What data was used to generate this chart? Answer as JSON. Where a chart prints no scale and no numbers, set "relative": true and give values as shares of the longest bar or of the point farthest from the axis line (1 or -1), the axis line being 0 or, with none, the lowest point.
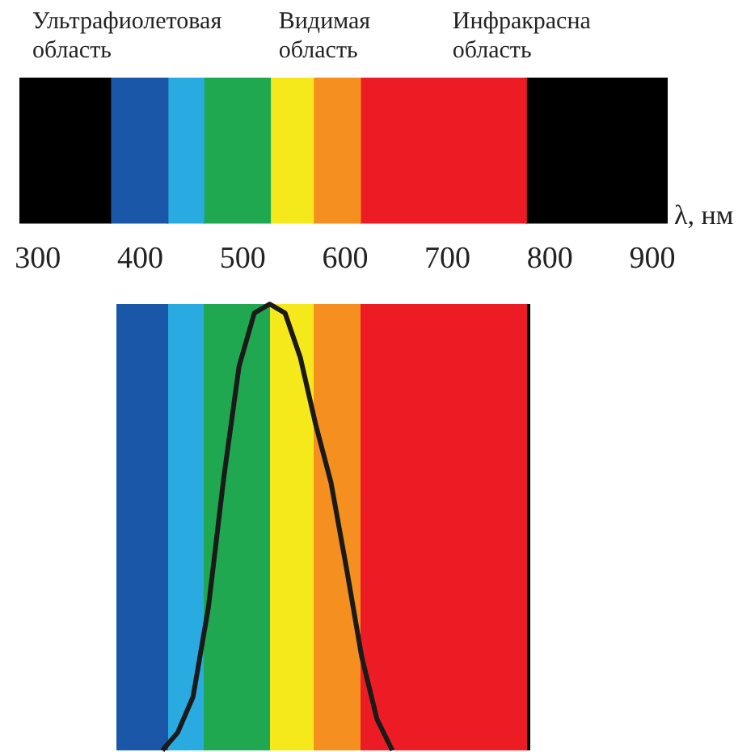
{
  "chart_data": [
    {
      "type": "bar",
      "orientation": "horizontal",
      "tick_labels": "x",
      "xlabel": "λ, нм",
      "xlim": [
        282,
        915
      ],
      "xticks": [
        300,
        400,
        500,
        600,
        700,
        800,
        900
      ],
      "categories": [
        null
      ],
      "annotations": [
        "Ультрафиолетовая область",
        "Видимая область",
        "Инфракрасна область"
      ],
      "series": [
        {
          "color": "#000000",
          "base": [
            282
          ],
          "values": [
            89
          ]
        },
        {
          "color": "#1b57a8",
          "base": [
            371
          ],
          "values": [
            56
          ]
        },
        {
          "color": "#29abe2",
          "base": [
            427
          ],
          "values": [
            35
          ]
        },
        {
          "color": "#1fa84f",
          "base": [
            462
          ],
          "values": [
            65
          ]
        },
        {
          "color": "#f5e91c",
          "base": [
            527
          ],
          "values": [
            42
          ]
        },
        {
          "color": "#f58f20",
          "base": [
            569
          ],
          "values": [
            46
          ]
        },
        {
          "color": "#ed1c24",
          "base": [
            615
          ],
          "values": [
            162
          ]
        },
        {
          "color": "#000000",
          "base": [
            777
          ],
          "values": [
            138
          ]
        }
      ]
    },
    {
      "type": "line",
      "relative": true,
      "tick_labels": false,
      "categories": [
        null,
        null,
        null,
        null,
        null,
        null,
        null,
        null,
        null,
        null,
        null,
        null,
        null,
        null,
        null,
        null,
        null,
        null,
        null,
        null,
        null,
        null,
        null,
        null,
        null,
        null,
        null,
        null
      ],
      "series": [
        {
          "color": "#1a1a1a",
          "values": [
            null,
            null,
            null,
            0,
            0.04,
            0.12,
            0.32,
            0.61,
            0.86,
            0.98,
            1,
            0.98,
            0.88,
            0.73,
            0.6,
            0.41,
            0.21,
            0.07,
            0,
            null,
            null,
            null,
            null,
            null,
            null,
            null,
            null,
            null
          ]
        }
      ]
    }
  ]
}
